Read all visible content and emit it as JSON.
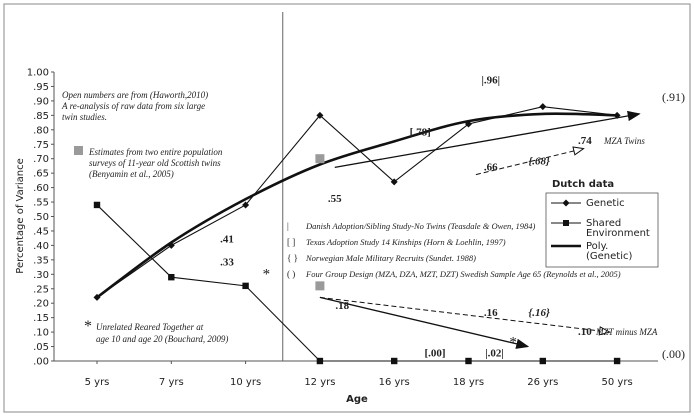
{
  "chart_data": {
    "type": "line",
    "xlabel": "Age",
    "ylabel": "Percentage of Variance",
    "categories": [
      "5 yrs",
      "7 yrs",
      "10 yrs",
      "12 yrs",
      "16 yrs",
      "18 yrs",
      "26 yrs",
      "50 yrs"
    ],
    "yticks": [
      ".00",
      ".05",
      ".10",
      ".15",
      ".20",
      ".25",
      ".30",
      ".35",
      ".40",
      ".45",
      ".50",
      ".55",
      ".60",
      ".65",
      ".70",
      ".75",
      ".80",
      ".85",
      ".90",
      ".95",
      "1.00"
    ],
    "ylim": [
      0,
      1.0
    ],
    "grid": false,
    "series": [
      {
        "name": "Genetic",
        "marker": "diamond",
        "values": [
          0.22,
          0.4,
          0.54,
          0.85,
          0.62,
          0.82,
          0.88,
          0.85
        ]
      },
      {
        "name": "Shared Environment",
        "marker": "square",
        "values": [
          0.54,
          0.29,
          0.26,
          0.0,
          0.0,
          0.0,
          0.0,
          0.0
        ]
      },
      {
        "name": "Poly. (Genetic)",
        "marker": "none",
        "fit": "polynomial",
        "values": [
          0.22,
          0.41,
          0.56,
          0.68,
          0.76,
          0.83,
          0.855,
          0.85
        ]
      }
    ],
    "gray_squares": [
      {
        "x": 3.0,
        "y": 0.7
      },
      {
        "x": 3.0,
        "y": 0.26
      }
    ],
    "legend": {
      "position": "right",
      "title": "Dutch data",
      "entries": [
        "Genetic",
        "Shared",
        "Environment",
        "Poly.",
        "(Genetic)"
      ]
    },
    "mza_twins": {
      "genetic_label": ".74",
      "genetic_text": "MZA Twins",
      "shared_label": ".10",
      "shared_text": "MZT minus MZA"
    },
    "annotations": {
      "open_numbers_1": "Open numbers are from (Haworth,2010)",
      "open_numbers_2": "A re-analysis of raw data from six large",
      "open_numbers_3": "twin studies.",
      "scottish_1": "Estimates from two entire population",
      "scottish_2": "surveys of 11-year old Scottish twins",
      "scottish_3": "(Benyamin et al., 2005)",
      "unrelated_1": "Unrelated Reared Together at",
      "unrelated_2": "age 10 and age 20 (Bouchard, 2009)",
      "asterisk": "*",
      "right_top": "(.91)",
      "right_bottom": "(.00)"
    },
    "studies": [
      {
        "symbol": "|",
        "text": "Danish Adoption/Sibling Study-No Twins (Teasdale & Owen, 1984)"
      },
      {
        "symbol": "[ ]",
        "text": "Texas Adoption Study 14 Kinships (Horn & Loehlin, 1997)"
      },
      {
        "symbol": "{ }",
        "text": "Norwegian Male Military Recruits (Sundet. 1988)"
      },
      {
        "symbol": "( )",
        "text": "Four Group Design (MZA, DZA, MZT, DZT) Swedish Sample Age 65 (Reynolds et al., 2005)"
      }
    ],
    "value_labels": [
      {
        "text": "|.96|",
        "x": 5.3,
        "y": 0.96,
        "bold": true,
        "italic": false
      },
      {
        "text": ".41",
        "x": 1.75,
        "y": 0.41,
        "bold": true,
        "italic": false
      },
      {
        "text": ".55",
        "x": 3.2,
        "y": 0.55,
        "bold": true,
        "italic": false
      },
      {
        "text": "[.78]",
        "x": 4.35,
        "y": 0.78,
        "bold": true,
        "italic": false
      },
      {
        "text": ".66",
        "x": 5.3,
        "y": 0.66,
        "bold": true,
        "italic": false
      },
      {
        "text": "{.68}",
        "x": 5.95,
        "y": 0.68,
        "bold": true,
        "italic": true
      },
      {
        "text": ".33",
        "x": 1.75,
        "y": 0.33,
        "bold": true,
        "italic": false
      },
      {
        "text": "*",
        "x": 2.28,
        "y": 0.285,
        "bold": false,
        "italic": false
      },
      {
        "text": ".18",
        "x": 3.3,
        "y": 0.18,
        "bold": true,
        "italic": false
      },
      {
        "text": ".16",
        "x": 5.3,
        "y": 0.155,
        "bold": true,
        "italic": false
      },
      {
        "text": "{.16}",
        "x": 5.95,
        "y": 0.155,
        "bold": true,
        "italic": true
      },
      {
        "text": "*",
        "x": 5.6,
        "y": 0.05,
        "bold": false,
        "italic": false
      },
      {
        "text": "[.00]",
        "x": 4.55,
        "y": 0.015,
        "bold": true,
        "italic": false
      },
      {
        "text": "|.02|",
        "x": 5.35,
        "y": 0.015,
        "bold": true,
        "italic": false
      }
    ],
    "solid_arrows": [
      {
        "from": [
          3.2,
          0.67
        ],
        "to": [
          7.3,
          0.855
        ]
      },
      {
        "from": [
          3.0,
          0.22
        ],
        "to": [
          5.8,
          0.05
        ]
      }
    ],
    "dashed_arrows": [
      {
        "from": [
          5.1,
          0.645
        ],
        "to": [
          6.55,
          0.735
        ]
      },
      {
        "from": [
          3.0,
          0.22
        ],
        "to": [
          6.9,
          0.1
        ]
      }
    ],
    "divider_x": 2.5
  }
}
